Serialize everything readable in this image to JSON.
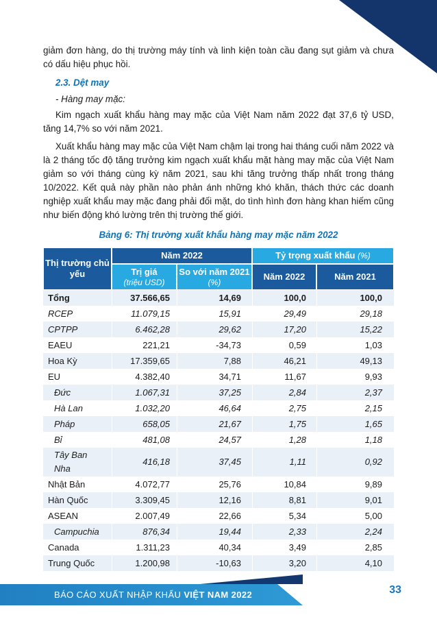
{
  "page": {
    "number": "33"
  },
  "colors": {
    "accent_blue": "#1173b4",
    "header_dark": "#1b5a9c",
    "header_light": "#29a9e1",
    "row_alt": "#e9f0f8",
    "corner_navy": "#14356b",
    "footer_band": "#2e9ad6",
    "footer_dark": "#12386f",
    "page_number_blue": "#1b75bb",
    "text": "#1c1c1c"
  },
  "content": {
    "para1": "giảm đơn hàng, do thị trường máy tính và linh kiện toàn cầu đang sụt giảm và chưa có dấu hiệu phục hồi.",
    "heading": "2.3. Dệt may",
    "subheading": "- Hàng may mặc:",
    "para2": "Kim ngạch xuất khẩu hàng may mặc của Việt Nam năm 2022 đạt 37,6 tỷ USD, tăng 14,7% so với năm 2021.",
    "para3": "Xuất khẩu hàng may mặc của Việt Nam chậm lại trong hai tháng cuối năm 2022 và là 2 tháng tốc độ tăng trưởng kim ngạch xuất khẩu mặt hàng may mặc của Việt Nam giảm so với tháng cùng kỳ năm 2021, sau khi tăng trưởng thấp nhất trong tháng 10/2022. Kết quả này phần nào phản ánh những khó khăn, thách thức các doanh nghiệp xuất khẩu may mặc đang phải đối mặt, do tình hình đơn hàng khan hiếm cũng như biến động khó lường trên thị trường thế giới.",
    "table_caption": "Bảng 6: Thị trường xuất khẩu hàng may mặc năm 2022"
  },
  "table": {
    "header": {
      "col1": "Thị trường chủ yếu",
      "group1": "Năm 2022",
      "group2": "Tỷ trọng xuất khẩu",
      "group2_unit": "(%)",
      "sub1": "Trị giá",
      "sub1_unit": "(triệu USD)",
      "sub2": "So với năm 2021",
      "sub2_unit": "(%)",
      "sub3": "Năm 2022",
      "sub4": "Năm 2021"
    },
    "rows": [
      {
        "label": "Tổng",
        "values": [
          "37.566,65",
          "14,69",
          "100,0",
          "100,0"
        ],
        "style": "bold",
        "indent": false
      },
      {
        "label": "RCEP",
        "values": [
          "11.079,15",
          "15,91",
          "29,49",
          "29,18"
        ],
        "style": "italic",
        "indent": false
      },
      {
        "label": "CPTPP",
        "values": [
          "6.462,28",
          "29,62",
          "17,20",
          "15,22"
        ],
        "style": "italic",
        "indent": false
      },
      {
        "label": "EAEU",
        "values": [
          "221,21",
          "-34,73",
          "0,59",
          "1,03"
        ],
        "style": "regular",
        "indent": false
      },
      {
        "label": "Hoa Kỳ",
        "values": [
          "17.359,65",
          "7,88",
          "46,21",
          "49,13"
        ],
        "style": "regular",
        "indent": false
      },
      {
        "label": "EU",
        "values": [
          "4.382,40",
          "34,71",
          "11,67",
          "9,93"
        ],
        "style": "regular",
        "indent": false
      },
      {
        "label": "Đức",
        "values": [
          "1.067,31",
          "37,25",
          "2,84",
          "2,37"
        ],
        "style": "italic",
        "indent": true
      },
      {
        "label": "Hà Lan",
        "values": [
          "1.032,20",
          "46,64",
          "2,75",
          "2,15"
        ],
        "style": "italic",
        "indent": true
      },
      {
        "label": "Pháp",
        "values": [
          "658,05",
          "21,67",
          "1,75",
          "1,65"
        ],
        "style": "italic",
        "indent": true
      },
      {
        "label": "Bỉ",
        "values": [
          "481,08",
          "24,57",
          "1,28",
          "1,18"
        ],
        "style": "italic",
        "indent": true
      },
      {
        "label": "Tây Ban Nha",
        "values": [
          "416,18",
          "37,45",
          "1,11",
          "0,92"
        ],
        "style": "italic",
        "indent": true
      },
      {
        "label": "Nhật Bản",
        "values": [
          "4.072,77",
          "25,76",
          "10,84",
          "9,89"
        ],
        "style": "regular",
        "indent": false
      },
      {
        "label": "Hàn Quốc",
        "values": [
          "3.309,45",
          "12,16",
          "8,81",
          "9,01"
        ],
        "style": "regular",
        "indent": false
      },
      {
        "label": "ASEAN",
        "values": [
          "2.007,49",
          "22,66",
          "5,34",
          "5,00"
        ],
        "style": "regular",
        "indent": false
      },
      {
        "label": "Campuchia",
        "values": [
          "876,34",
          "19,44",
          "2,33",
          "2,24"
        ],
        "style": "italic",
        "indent": true
      },
      {
        "label": "Canada",
        "values": [
          "1.311,23",
          "40,34",
          "3,49",
          "2,85"
        ],
        "style": "regular",
        "indent": false
      },
      {
        "label": "Trung Quốc",
        "values": [
          "1.200,98",
          "-10,63",
          "3,20",
          "4,10"
        ],
        "style": "regular",
        "indent": false
      }
    ]
  },
  "footer": {
    "title_regular": "BÁO CÁO XUẤT NHẬP KHẨU ",
    "title_bold": "VIỆT NAM 2022"
  }
}
